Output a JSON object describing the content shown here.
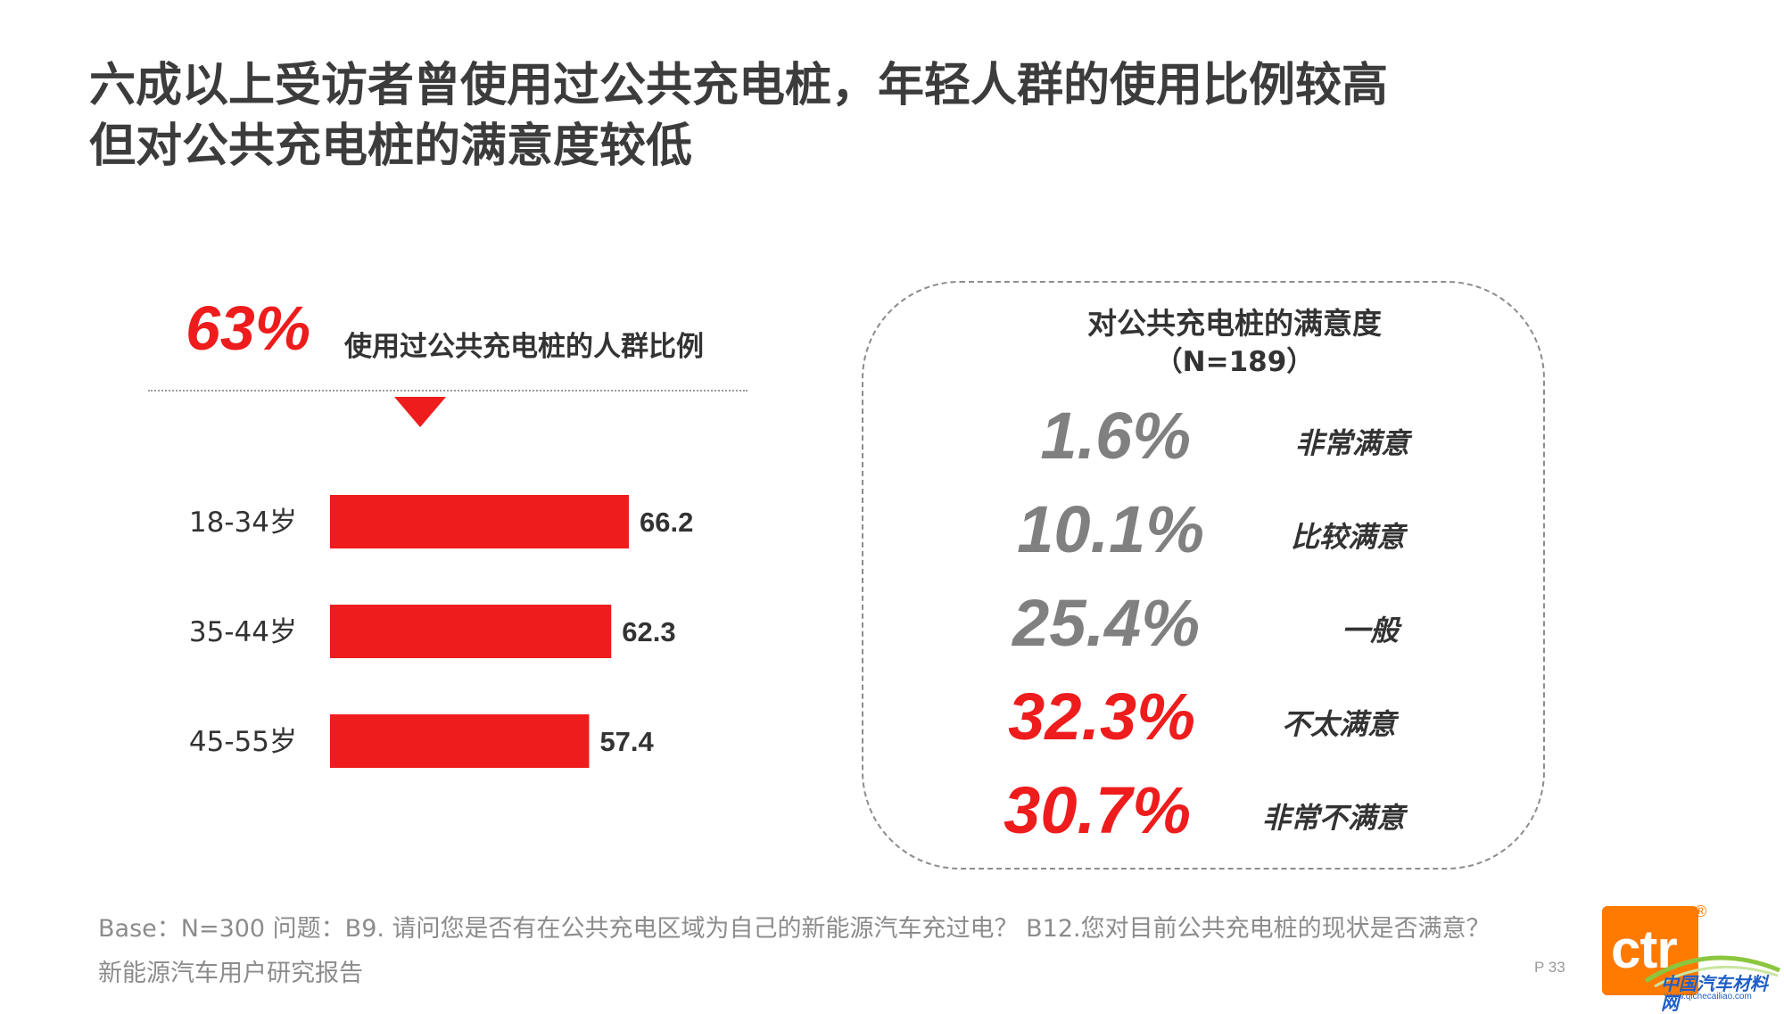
{
  "title": {
    "line1": "六成以上受访者曾使用过公共充电桩，年轻人群的使用比例较高",
    "line2": "但对公共充电桩的满意度较低"
  },
  "highlight": {
    "percent": "63%",
    "label": "使用过公共充电桩的人群比例"
  },
  "satisfaction": {
    "title": "对公共充电桩的满意度",
    "n": "（N=189）",
    "items": [
      {
        "percent": "1.6%",
        "label": "非常满意",
        "color": "#808080"
      },
      {
        "percent": "10.1%",
        "label": "比较满意",
        "color": "#808080"
      },
      {
        "percent": "25.4%",
        "label": "一般",
        "color": "#808080"
      },
      {
        "percent": "32.3%",
        "label": "不太满意",
        "color": "#ee1c1c"
      },
      {
        "percent": "30.7%",
        "label": "非常不满意",
        "color": "#ee1c1c"
      }
    ]
  },
  "chart_data": {
    "type": "bar",
    "orientation": "horizontal",
    "categories": [
      "18-34岁",
      "35-44岁",
      "45-55岁"
    ],
    "values": [
      66.2,
      62.3,
      57.4
    ],
    "value_labels": [
      "66.2",
      "62.3",
      "57.4"
    ],
    "bar_color": "#ee1c1c",
    "grid": false
  },
  "footnote": "Base：N=300    问题：B9. 请问您是否有在公共充电区域为自己的新能源汽车充过电？ B12.您对目前公共充电桩的现状是否满意？",
  "report_name": "新能源汽车用户研究报告",
  "page_number": "P 33",
  "logo": {
    "text": "ctr",
    "reg": "®",
    "watermark": "中国汽车材料网",
    "watermark_url": "www.qichecailiao.com",
    "color": "#ff7a00"
  }
}
